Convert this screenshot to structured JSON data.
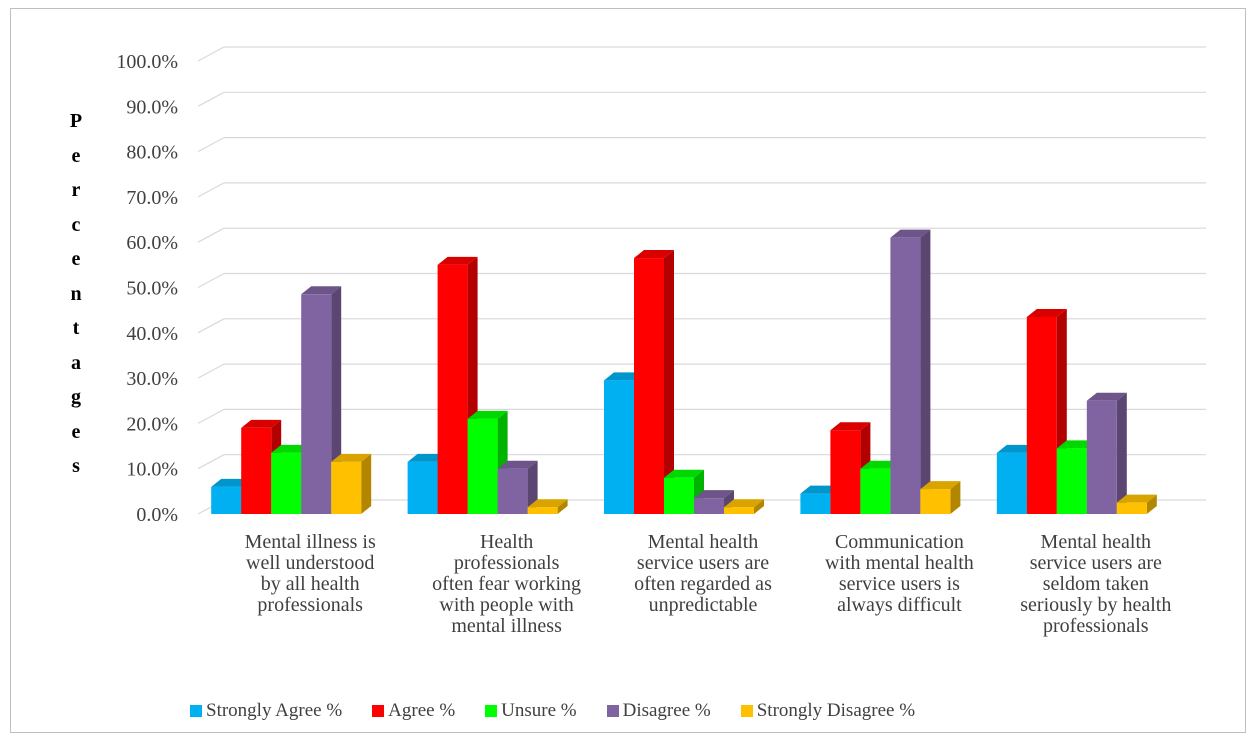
{
  "chart_data": {
    "type": "bar",
    "categories": [
      "Mental illness is well understood by all health professionals",
      "Health professionals often fear working with people with mental illness",
      "Mental health service users are often regarded as unpredictable",
      "Communication with mental health service users is always difficult",
      "Mental health service users are seldom taken seriously by health professionals"
    ],
    "category_lines": [
      [
        "Mental illness is",
        "well understood",
        "by all health",
        "professionals"
      ],
      [
        "Health",
        "professionals",
        "often fear working",
        "with people with",
        "mental illness"
      ],
      [
        "Mental health",
        "service users are",
        "often regarded as",
        "unpredictable"
      ],
      [
        "Communication",
        "with mental health",
        "service users is",
        "always difficult"
      ],
      [
        "Mental health",
        "service users are",
        "seldom taken",
        "seriously by health",
        "professionals"
      ]
    ],
    "series": [
      {
        "name": "Strongly Agree %",
        "color": "#00b0f0",
        "values": [
          6.0,
          11.5,
          29.5,
          4.5,
          13.5
        ]
      },
      {
        "name": "Agree %",
        "color": "#ff0000",
        "values": [
          19.0,
          55.0,
          56.5,
          18.5,
          43.5
        ]
      },
      {
        "name": "Unsure %",
        "color": "#00ff00",
        "values": [
          13.5,
          21.0,
          8.0,
          10.0,
          14.5
        ]
      },
      {
        "name": "Disagree %",
        "color": "#8064a2",
        "values": [
          48.5,
          10.0,
          3.5,
          61.0,
          25.0
        ]
      },
      {
        "name": "Strongly Disagree %",
        "color": "#ffc000",
        "values": [
          11.5,
          1.5,
          1.5,
          5.5,
          2.5
        ]
      }
    ],
    "ylabel": "Percentages",
    "ylabel_letters": [
      "P",
      "e",
      "r",
      "c",
      "e",
      "n",
      "t",
      "a",
      "g",
      "e",
      "s"
    ],
    "yticks": [
      "0.0%",
      "10.0%",
      "20.0%",
      "30.0%",
      "40.0%",
      "50.0%",
      "60.0%",
      "70.0%",
      "80.0%",
      "90.0%",
      "100.0%"
    ],
    "ylim": [
      0,
      100
    ],
    "grid": true,
    "legend_position": "bottom"
  }
}
